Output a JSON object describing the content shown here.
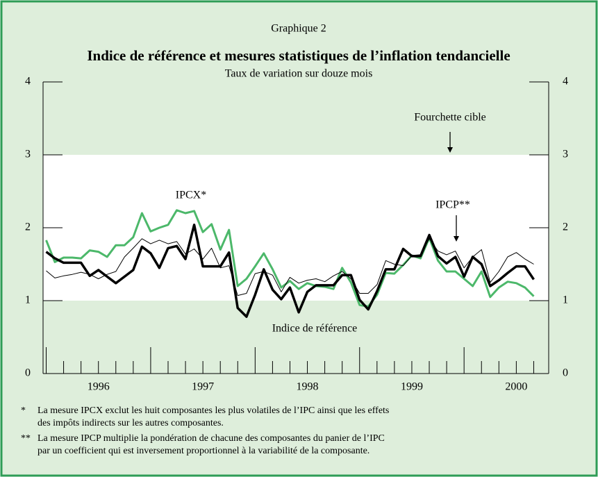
{
  "chart_data": {
    "type": "line",
    "label": "Graphique 2",
    "title": "Indice de référence et mesures statistiques de l’inflation tendancielle",
    "subtitle": "Taux de variation sur douze mois",
    "target_label": "Fourchette cible",
    "target_range": [
      1,
      3
    ],
    "x": [
      1996.0,
      1996.083,
      1996.167,
      1996.25,
      1996.333,
      1996.417,
      1996.5,
      1996.583,
      1996.667,
      1996.75,
      1996.833,
      1996.917,
      1997.0,
      1997.083,
      1997.167,
      1997.25,
      1997.333,
      1997.417,
      1997.5,
      1997.583,
      1997.667,
      1997.75,
      1997.833,
      1997.917,
      1998.0,
      1998.083,
      1998.167,
      1998.25,
      1998.333,
      1998.417,
      1998.5,
      1998.583,
      1998.667,
      1998.75,
      1998.833,
      1998.917,
      1999.0,
      1999.083,
      1999.167,
      1999.25,
      1999.333,
      1999.417,
      1999.5,
      1999.583,
      1999.667,
      1999.75,
      1999.833,
      1999.917,
      2000.0,
      2000.083,
      2000.167,
      2000.25,
      2000.333,
      2000.417,
      2000.5,
      2000.583,
      2000.667
    ],
    "series": [
      {
        "name": "IPCX*",
        "color": "#4cb86a",
        "width": 3,
        "values": [
          1.83,
          1.53,
          1.59,
          1.59,
          1.58,
          1.69,
          1.67,
          1.6,
          1.76,
          1.76,
          1.87,
          2.2,
          1.95,
          2.0,
          2.04,
          2.24,
          2.2,
          2.23,
          1.94,
          2.05,
          1.7,
          1.97,
          1.2,
          1.3,
          1.47,
          1.65,
          1.43,
          1.18,
          1.27,
          1.16,
          1.24,
          1.2,
          1.19,
          1.16,
          1.45,
          1.25,
          0.94,
          0.92,
          1.08,
          1.38,
          1.37,
          1.49,
          1.62,
          1.58,
          1.86,
          1.55,
          1.4,
          1.4,
          1.3,
          1.2,
          1.4,
          1.05,
          1.18,
          1.26,
          1.24,
          1.18,
          1.06
        ]
      },
      {
        "name": "IPCP**",
        "color": "#000000",
        "width": 1,
        "values": [
          1.41,
          1.31,
          1.34,
          1.36,
          1.39,
          1.36,
          1.3,
          1.36,
          1.4,
          1.6,
          1.72,
          1.85,
          1.78,
          1.83,
          1.78,
          1.81,
          1.64,
          1.71,
          1.57,
          1.72,
          1.45,
          1.48,
          1.07,
          1.1,
          1.37,
          1.4,
          1.35,
          1.12,
          1.32,
          1.24,
          1.28,
          1.3,
          1.26,
          1.34,
          1.4,
          1.3,
          1.1,
          1.1,
          1.22,
          1.55,
          1.5,
          1.48,
          1.62,
          1.63,
          1.85,
          1.68,
          1.63,
          1.68,
          1.45,
          1.6,
          1.7,
          1.25,
          1.4,
          1.6,
          1.66,
          1.57,
          1.5
        ]
      },
      {
        "name": "Indice de référence",
        "color": "#000000",
        "width": 3.5,
        "values": [
          1.67,
          1.58,
          1.52,
          1.52,
          1.52,
          1.34,
          1.42,
          1.33,
          1.24,
          1.33,
          1.42,
          1.74,
          1.65,
          1.45,
          1.72,
          1.75,
          1.57,
          2.04,
          1.47,
          1.47,
          1.47,
          1.66,
          0.9,
          0.78,
          1.08,
          1.43,
          1.15,
          1.02,
          1.18,
          0.84,
          1.12,
          1.21,
          1.21,
          1.21,
          1.35,
          1.35,
          1.01,
          0.88,
          1.13,
          1.43,
          1.43,
          1.71,
          1.61,
          1.61,
          1.9,
          1.61,
          1.51,
          1.6,
          1.33,
          1.6,
          1.5,
          1.2,
          1.28,
          1.38,
          1.47,
          1.47,
          1.29
        ]
      }
    ],
    "xlim": [
      1995.97,
      2000.81
    ],
    "xticks": [
      {
        "value": 1996.5,
        "label": "1996"
      },
      {
        "value": 1997.5,
        "label": "1997"
      },
      {
        "value": 1998.5,
        "label": "1998"
      },
      {
        "value": 1999.5,
        "label": "1999"
      },
      {
        "value": 2000.5,
        "label": "2000"
      }
    ],
    "ylim": [
      0,
      4
    ],
    "yticks": [
      0,
      1,
      2,
      3,
      4
    ],
    "notes": [
      {
        "mark": "*",
        "lines": [
          "La mesure IPCX exclut les huit composantes les plus volatiles de l’IPC ainsi que les effets",
          "des impôts indirects sur les autres composantes."
        ]
      },
      {
        "mark": "**",
        "lines": [
          "La mesure IPCP multiplie la pondération de chacune des composantes du panier de l’IPC",
          "par un coefficient qui est inversement proportionnel à la variabilité de la composante."
        ]
      }
    ]
  }
}
